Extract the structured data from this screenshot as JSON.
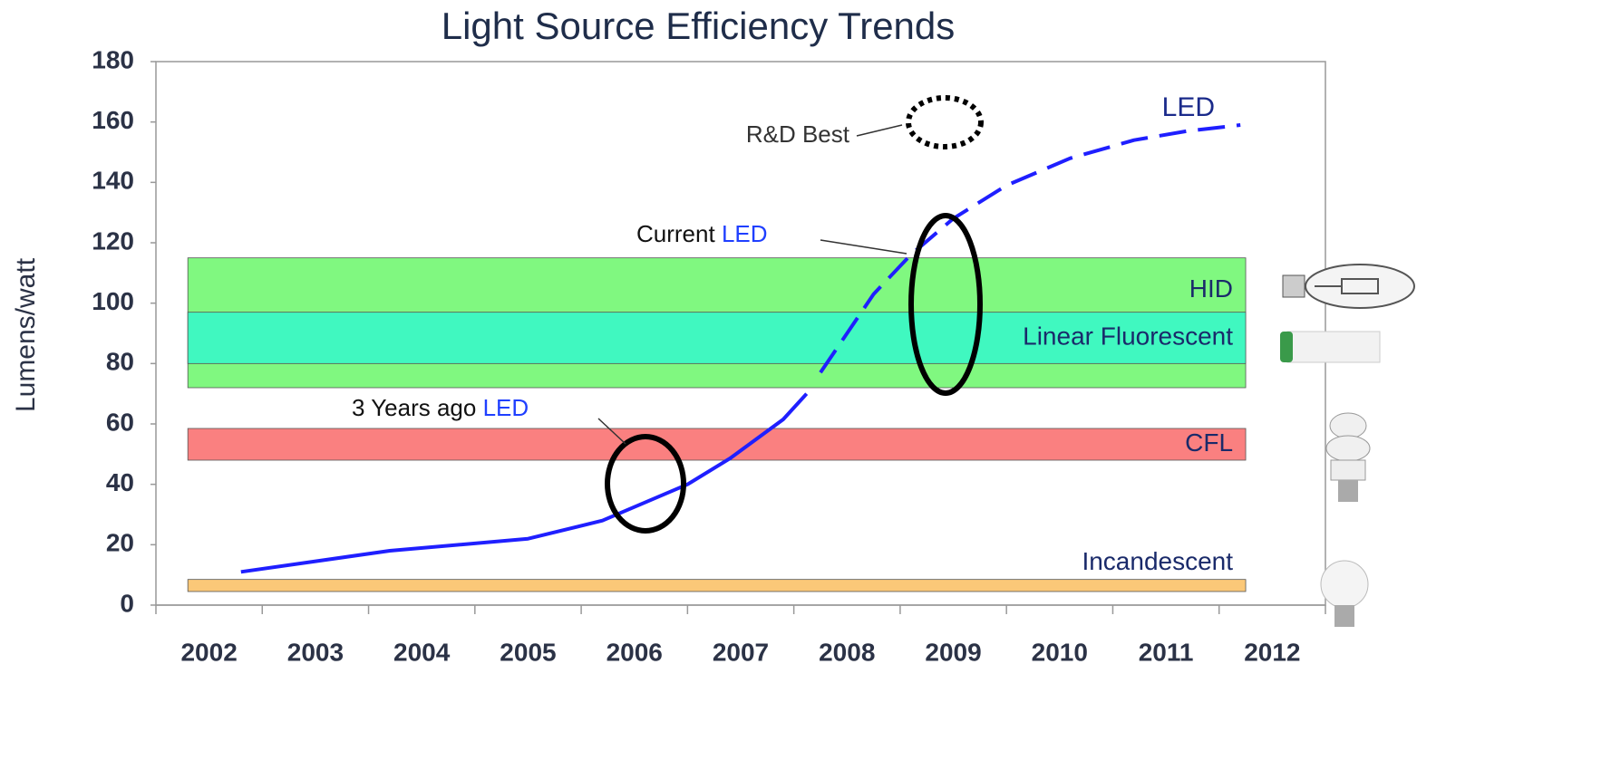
{
  "chart_data": {
    "type": "line",
    "title": "Light Source Efficiency Trends",
    "y_label": "Lumens/watt",
    "xlim": [
      2001.5,
      2012.5
    ],
    "xticks": [
      2002,
      2003,
      2004,
      2005,
      2006,
      2007,
      2008,
      2009,
      2010,
      2011,
      2012
    ],
    "ylim": [
      0,
      180
    ],
    "yticks": [
      0,
      20,
      40,
      60,
      80,
      100,
      120,
      140,
      160,
      180
    ],
    "series": [
      {
        "name": "LED",
        "color": "#1f1fff",
        "linestyle": "solid",
        "x": [
          2002.3,
          2003.7,
          2005.0,
          2005.7,
          2006.5,
          2006.9,
          2007.4,
          2007.62
        ],
        "values": [
          11,
          18,
          22,
          28,
          40,
          48.6,
          61.5,
          70
        ]
      },
      {
        "color": "#1f1fff",
        "linestyle": "dashed",
        "x": [
          2007.75,
          2008.25,
          2008.6,
          2009.0,
          2009.5,
          2010.1,
          2010.7,
          2011.2,
          2011.7
        ],
        "values": [
          77,
          103,
          116,
          128,
          139,
          148,
          154,
          157,
          159
        ]
      }
    ],
    "bands": [
      {
        "label": "HID",
        "ymin": 72,
        "ymax": 115,
        "color": "#80f880"
      },
      {
        "label": "Linear Fluorescent",
        "ymin": 80,
        "ymax": 97,
        "color": "#40f8c0"
      },
      {
        "label": "CFL",
        "ymin": 48,
        "ymax": 58.5,
        "color": "#fa8080"
      },
      {
        "label": "Incandescent",
        "ymin": 4.5,
        "ymax": 8.5,
        "color": "#fbc878"
      }
    ],
    "band_xlim": [
      2001.8,
      2011.75
    ],
    "annotations": {
      "rd_best": "R&D Best",
      "current": {
        "text": "Current",
        "highlight": "LED"
      },
      "three_years": {
        "text": "3 Years ago",
        "highlight": "LED"
      }
    }
  }
}
